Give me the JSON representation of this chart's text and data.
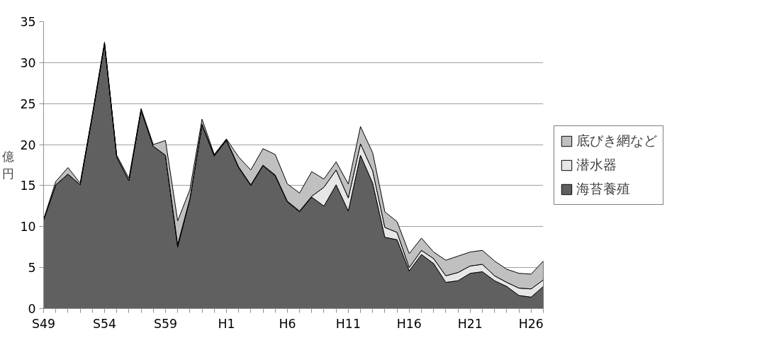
{
  "chart_data": {
    "type": "area",
    "stacked": true,
    "ylabel": "億円",
    "categories": [
      "S49",
      null,
      null,
      null,
      null,
      "S54",
      null,
      null,
      null,
      null,
      "S59",
      null,
      null,
      null,
      null,
      "H1",
      null,
      null,
      null,
      null,
      "H6",
      null,
      null,
      null,
      null,
      "H11",
      null,
      null,
      null,
      null,
      "H16",
      null,
      null,
      null,
      null,
      "H21",
      null,
      null,
      null,
      null,
      "H26",
      null
    ],
    "series": [
      {
        "name": "海苔養殖",
        "color": "#606060",
        "values": [
          10.8,
          15.1,
          16.4,
          15.1,
          23.5,
          32.3,
          18.5,
          15.6,
          24.2,
          19.8,
          18.7,
          7.5,
          13.3,
          22.4,
          18.6,
          20.5,
          17.2,
          15.0,
          17.4,
          16.2,
          13.0,
          11.8,
          13.6,
          12.5,
          15.1,
          11.9,
          18.7,
          15.3,
          8.7,
          8.4,
          4.6,
          6.6,
          5.5,
          3.2,
          3.4,
          4.3,
          4.5,
          3.4,
          2.7,
          1.6,
          1.4,
          2.7
        ]
      },
      {
        "name": "潜水器",
        "color": "#e6e6e6",
        "values": [
          0,
          0,
          0,
          0,
          0,
          0,
          0,
          0,
          0,
          0,
          0,
          0.3,
          0.1,
          0.1,
          0.1,
          0.1,
          0.1,
          0.1,
          0.1,
          0.1,
          0.1,
          0.1,
          0.1,
          2.3,
          1.8,
          1.6,
          1.4,
          1.5,
          1.2,
          0.9,
          0.4,
          0.5,
          0.6,
          0.8,
          1.0,
          0.9,
          0.9,
          0.6,
          0.5,
          0.9,
          1.0,
          0.8
        ]
      },
      {
        "name": "底びき網など",
        "color": "#c0c0c0",
        "values": [
          0.1,
          0.4,
          0.8,
          0.2,
          0.2,
          0.2,
          0.2,
          0.3,
          0.2,
          0.2,
          1.8,
          2.9,
          1.1,
          0.6,
          0.1,
          0.1,
          1.2,
          1.8,
          2.0,
          2.5,
          2.1,
          2.2,
          3.0,
          1.0,
          1.0,
          1.7,
          2.1,
          2.2,
          1.9,
          1.3,
          1.7,
          1.5,
          0.8,
          1.9,
          2.0,
          1.7,
          1.7,
          1.8,
          1.6,
          1.8,
          1.8,
          2.3
        ]
      }
    ],
    "ylim": [
      0,
      35
    ],
    "yticks": [
      0,
      5,
      10,
      15,
      20,
      25,
      30,
      35
    ],
    "grid": "y",
    "legend": "right"
  }
}
